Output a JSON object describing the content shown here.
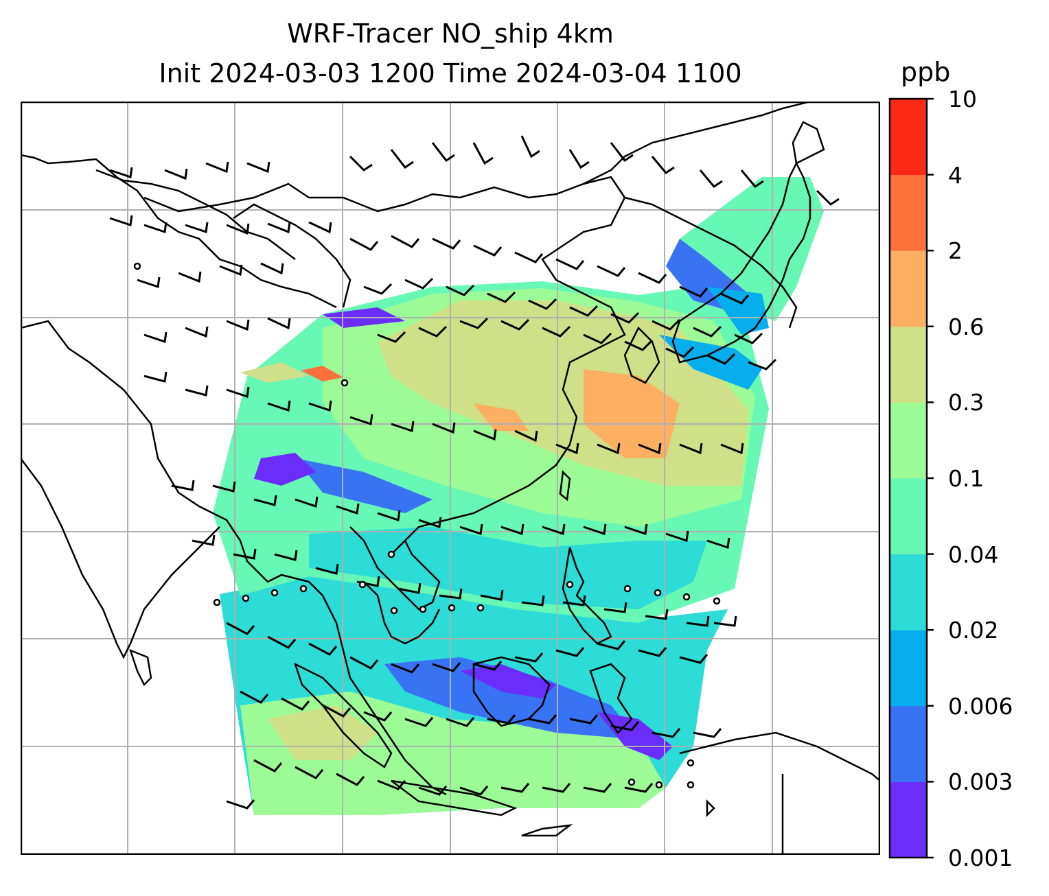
{
  "title": {
    "line1": "WRF-Tracer NO_ship 4km",
    "line2": "Init 2024-03-03 1200 Time 2024-03-04 1100"
  },
  "colorbar": {
    "unit": "ppb",
    "ticks": [
      "0.001",
      "0.003",
      "0.006",
      "0.02",
      "0.04",
      "0.1",
      "0.3",
      "0.6",
      "2",
      "4",
      "10"
    ],
    "colors": [
      "#6a2dfa",
      "#3873f4",
      "#06aeed",
      "#2ddcd6",
      "#66f8b4",
      "#9cfb96",
      "#cfe088",
      "#fdb061",
      "#fe713c",
      "#fb2a16"
    ]
  },
  "map": {
    "gridlines": true,
    "land_color": "#ffffff",
    "coastline_color": "#000000",
    "grid_color": "#b0b0b0",
    "overlays": [
      "wind barbs",
      "station markers"
    ]
  }
}
